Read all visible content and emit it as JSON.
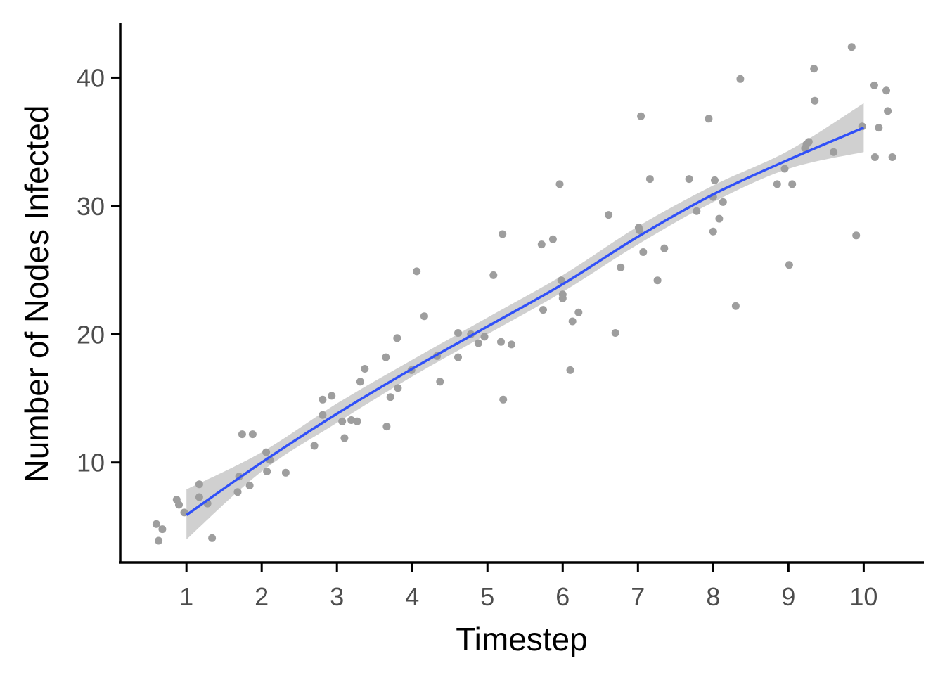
{
  "chart_data": {
    "type": "scatter",
    "title": "",
    "xlabel": "Timestep",
    "ylabel": "Number of Nodes Infected",
    "xlim": [
      0.12,
      10.8
    ],
    "ylim": [
      2.2,
      44.3
    ],
    "x_ticks": [
      1,
      2,
      3,
      4,
      5,
      6,
      7,
      8,
      9,
      10
    ],
    "y_ticks": [
      10,
      20,
      30,
      40
    ],
    "grid": false,
    "legend": "none",
    "colors": {
      "points": "#9e9e9e",
      "smooth_line": "#3050f8",
      "confidence_band": "#c8c8c8",
      "axis": "#000000"
    },
    "series": [
      {
        "kind": "points",
        "x": [
          0.6,
          0.63,
          0.68,
          0.87,
          0.9,
          0.97,
          1.17,
          1.17,
          1.28,
          1.34,
          1.68,
          1.7,
          1.74,
          1.84,
          1.88,
          2.06,
          2.07,
          2.11,
          2.32,
          2.7,
          2.81,
          2.81,
          2.93,
          3.07,
          3.1,
          3.19,
          3.27,
          3.31,
          3.37,
          3.65,
          3.66,
          3.71,
          3.8,
          3.81,
          3.99,
          4.06,
          4.16,
          4.33,
          4.37,
          4.61,
          4.61,
          4.78,
          4.88,
          4.96,
          5.08,
          5.18,
          5.2,
          5.21,
          5.32,
          5.72,
          5.74,
          5.87,
          5.96,
          5.98,
          6.0,
          6.0,
          6.1,
          6.13,
          6.21,
          6.61,
          6.7,
          6.77,
          7.01,
          7.02,
          7.04,
          7.07,
          7.16,
          7.26,
          7.35,
          7.68,
          7.78,
          7.94,
          8.0,
          8.0,
          8.02,
          8.08,
          8.13,
          8.3,
          8.36,
          8.85,
          8.95,
          9.01,
          9.05,
          9.22,
          9.24,
          9.27,
          9.34,
          9.35,
          9.6,
          9.84,
          9.9,
          9.98,
          10.14,
          10.15,
          10.2,
          10.3,
          10.32,
          10.38
        ],
        "y": [
          5.2,
          3.9,
          4.8,
          7.1,
          6.7,
          6.1,
          7.3,
          8.3,
          6.8,
          4.1,
          7.7,
          8.9,
          12.2,
          8.2,
          12.2,
          10.8,
          9.3,
          10.2,
          9.2,
          11.3,
          13.7,
          14.9,
          15.2,
          13.2,
          11.9,
          13.3,
          13.2,
          16.3,
          17.3,
          18.2,
          12.8,
          15.1,
          19.7,
          15.8,
          17.2,
          24.9,
          21.4,
          18.3,
          16.3,
          20.1,
          18.2,
          20.0,
          19.3,
          19.8,
          24.6,
          19.4,
          27.8,
          14.9,
          19.2,
          27.0,
          21.9,
          27.4,
          31.7,
          24.2,
          23.1,
          22.8,
          17.2,
          21.0,
          21.7,
          29.3,
          20.1,
          25.2,
          28.3,
          28.1,
          37.0,
          26.4,
          32.1,
          24.2,
          26.7,
          32.1,
          29.6,
          36.8,
          30.7,
          28.0,
          32.0,
          29.0,
          30.3,
          22.2,
          39.9,
          31.7,
          32.9,
          25.4,
          31.7,
          34.5,
          34.8,
          35.0,
          40.7,
          38.2,
          34.2,
          42.4,
          27.7,
          36.2,
          39.4,
          33.8,
          36.1,
          39.0,
          37.4,
          33.8
        ]
      },
      {
        "kind": "smooth",
        "x": [
          1,
          2,
          3,
          4,
          5,
          6,
          7,
          8,
          9,
          10
        ],
        "y": [
          5.9,
          10.0,
          13.8,
          17.3,
          20.6,
          23.9,
          27.6,
          30.9,
          33.6,
          36.1
        ],
        "lower": [
          4.0,
          9.3,
          13.1,
          16.7,
          20.0,
          23.3,
          27.0,
          30.3,
          32.9,
          34.2
        ],
        "upper": [
          7.9,
          10.8,
          14.6,
          18.0,
          21.3,
          24.6,
          28.4,
          31.6,
          34.3,
          38.0
        ]
      }
    ]
  }
}
